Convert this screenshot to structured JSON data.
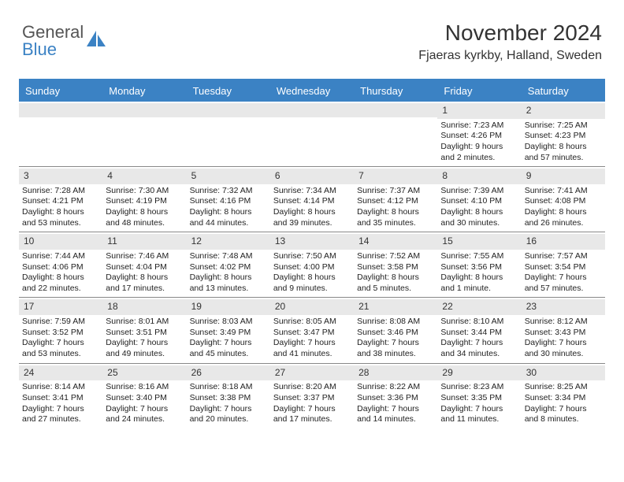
{
  "brand": {
    "word1": "General",
    "word2": "Blue",
    "accent_color": "#3b82c4"
  },
  "header": {
    "title": "November 2024",
    "location": "Fjaeras kyrkby, Halland, Sweden"
  },
  "colors": {
    "header_bg": "#3b82c4",
    "header_text": "#ffffff",
    "daynum_bg": "#e8e8e8",
    "border": "#888888",
    "text": "#222222"
  },
  "daynames": [
    "Sunday",
    "Monday",
    "Tuesday",
    "Wednesday",
    "Thursday",
    "Friday",
    "Saturday"
  ],
  "weeks": [
    [
      {
        "n": "",
        "sunrise": "",
        "sunset": "",
        "daylight": ""
      },
      {
        "n": "",
        "sunrise": "",
        "sunset": "",
        "daylight": ""
      },
      {
        "n": "",
        "sunrise": "",
        "sunset": "",
        "daylight": ""
      },
      {
        "n": "",
        "sunrise": "",
        "sunset": "",
        "daylight": ""
      },
      {
        "n": "",
        "sunrise": "",
        "sunset": "",
        "daylight": ""
      },
      {
        "n": "1",
        "sunrise": "Sunrise: 7:23 AM",
        "sunset": "Sunset: 4:26 PM",
        "daylight": "Daylight: 9 hours and 2 minutes."
      },
      {
        "n": "2",
        "sunrise": "Sunrise: 7:25 AM",
        "sunset": "Sunset: 4:23 PM",
        "daylight": "Daylight: 8 hours and 57 minutes."
      }
    ],
    [
      {
        "n": "3",
        "sunrise": "Sunrise: 7:28 AM",
        "sunset": "Sunset: 4:21 PM",
        "daylight": "Daylight: 8 hours and 53 minutes."
      },
      {
        "n": "4",
        "sunrise": "Sunrise: 7:30 AM",
        "sunset": "Sunset: 4:19 PM",
        "daylight": "Daylight: 8 hours and 48 minutes."
      },
      {
        "n": "5",
        "sunrise": "Sunrise: 7:32 AM",
        "sunset": "Sunset: 4:16 PM",
        "daylight": "Daylight: 8 hours and 44 minutes."
      },
      {
        "n": "6",
        "sunrise": "Sunrise: 7:34 AM",
        "sunset": "Sunset: 4:14 PM",
        "daylight": "Daylight: 8 hours and 39 minutes."
      },
      {
        "n": "7",
        "sunrise": "Sunrise: 7:37 AM",
        "sunset": "Sunset: 4:12 PM",
        "daylight": "Daylight: 8 hours and 35 minutes."
      },
      {
        "n": "8",
        "sunrise": "Sunrise: 7:39 AM",
        "sunset": "Sunset: 4:10 PM",
        "daylight": "Daylight: 8 hours and 30 minutes."
      },
      {
        "n": "9",
        "sunrise": "Sunrise: 7:41 AM",
        "sunset": "Sunset: 4:08 PM",
        "daylight": "Daylight: 8 hours and 26 minutes."
      }
    ],
    [
      {
        "n": "10",
        "sunrise": "Sunrise: 7:44 AM",
        "sunset": "Sunset: 4:06 PM",
        "daylight": "Daylight: 8 hours and 22 minutes."
      },
      {
        "n": "11",
        "sunrise": "Sunrise: 7:46 AM",
        "sunset": "Sunset: 4:04 PM",
        "daylight": "Daylight: 8 hours and 17 minutes."
      },
      {
        "n": "12",
        "sunrise": "Sunrise: 7:48 AM",
        "sunset": "Sunset: 4:02 PM",
        "daylight": "Daylight: 8 hours and 13 minutes."
      },
      {
        "n": "13",
        "sunrise": "Sunrise: 7:50 AM",
        "sunset": "Sunset: 4:00 PM",
        "daylight": "Daylight: 8 hours and 9 minutes."
      },
      {
        "n": "14",
        "sunrise": "Sunrise: 7:52 AM",
        "sunset": "Sunset: 3:58 PM",
        "daylight": "Daylight: 8 hours and 5 minutes."
      },
      {
        "n": "15",
        "sunrise": "Sunrise: 7:55 AM",
        "sunset": "Sunset: 3:56 PM",
        "daylight": "Daylight: 8 hours and 1 minute."
      },
      {
        "n": "16",
        "sunrise": "Sunrise: 7:57 AM",
        "sunset": "Sunset: 3:54 PM",
        "daylight": "Daylight: 7 hours and 57 minutes."
      }
    ],
    [
      {
        "n": "17",
        "sunrise": "Sunrise: 7:59 AM",
        "sunset": "Sunset: 3:52 PM",
        "daylight": "Daylight: 7 hours and 53 minutes."
      },
      {
        "n": "18",
        "sunrise": "Sunrise: 8:01 AM",
        "sunset": "Sunset: 3:51 PM",
        "daylight": "Daylight: 7 hours and 49 minutes."
      },
      {
        "n": "19",
        "sunrise": "Sunrise: 8:03 AM",
        "sunset": "Sunset: 3:49 PM",
        "daylight": "Daylight: 7 hours and 45 minutes."
      },
      {
        "n": "20",
        "sunrise": "Sunrise: 8:05 AM",
        "sunset": "Sunset: 3:47 PM",
        "daylight": "Daylight: 7 hours and 41 minutes."
      },
      {
        "n": "21",
        "sunrise": "Sunrise: 8:08 AM",
        "sunset": "Sunset: 3:46 PM",
        "daylight": "Daylight: 7 hours and 38 minutes."
      },
      {
        "n": "22",
        "sunrise": "Sunrise: 8:10 AM",
        "sunset": "Sunset: 3:44 PM",
        "daylight": "Daylight: 7 hours and 34 minutes."
      },
      {
        "n": "23",
        "sunrise": "Sunrise: 8:12 AM",
        "sunset": "Sunset: 3:43 PM",
        "daylight": "Daylight: 7 hours and 30 minutes."
      }
    ],
    [
      {
        "n": "24",
        "sunrise": "Sunrise: 8:14 AM",
        "sunset": "Sunset: 3:41 PM",
        "daylight": "Daylight: 7 hours and 27 minutes."
      },
      {
        "n": "25",
        "sunrise": "Sunrise: 8:16 AM",
        "sunset": "Sunset: 3:40 PM",
        "daylight": "Daylight: 7 hours and 24 minutes."
      },
      {
        "n": "26",
        "sunrise": "Sunrise: 8:18 AM",
        "sunset": "Sunset: 3:38 PM",
        "daylight": "Daylight: 7 hours and 20 minutes."
      },
      {
        "n": "27",
        "sunrise": "Sunrise: 8:20 AM",
        "sunset": "Sunset: 3:37 PM",
        "daylight": "Daylight: 7 hours and 17 minutes."
      },
      {
        "n": "28",
        "sunrise": "Sunrise: 8:22 AM",
        "sunset": "Sunset: 3:36 PM",
        "daylight": "Daylight: 7 hours and 14 minutes."
      },
      {
        "n": "29",
        "sunrise": "Sunrise: 8:23 AM",
        "sunset": "Sunset: 3:35 PM",
        "daylight": "Daylight: 7 hours and 11 minutes."
      },
      {
        "n": "30",
        "sunrise": "Sunrise: 8:25 AM",
        "sunset": "Sunset: 3:34 PM",
        "daylight": "Daylight: 7 hours and 8 minutes."
      }
    ]
  ]
}
